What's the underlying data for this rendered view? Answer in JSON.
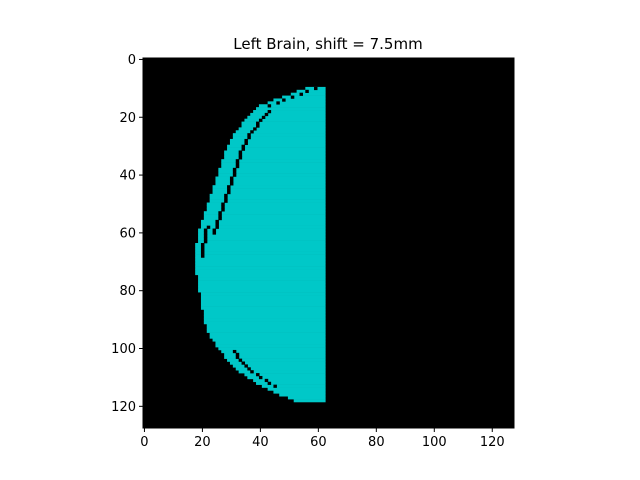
{
  "chart_data": {
    "type": "heatmap",
    "title": "Left Brain, shift = 7.5mm",
    "xlabel": "",
    "ylabel": "",
    "image_size": [
      128,
      128
    ],
    "xlim": [
      -0.5,
      127.5
    ],
    "ylim": [
      127.5,
      -0.5
    ],
    "xticks": [
      0,
      20,
      40,
      60,
      80,
      100,
      120
    ],
    "yticks": [
      0,
      20,
      40,
      60,
      80,
      100,
      120
    ],
    "background_color": "#000000",
    "mask_color": "#00c8c8",
    "mask": {
      "description_of_region": "left hemisphere brain mask",
      "right_edge_col": 62,
      "top_row": 10,
      "bottom_row": 118,
      "outline_left_col_by_row": [
        [
          10,
          56
        ],
        [
          13,
          48
        ],
        [
          16,
          40
        ],
        [
          20,
          36
        ],
        [
          25,
          32
        ],
        [
          30,
          29
        ],
        [
          36,
          27
        ],
        [
          42,
          25
        ],
        [
          48,
          23
        ],
        [
          54,
          21
        ],
        [
          60,
          19
        ],
        [
          66,
          18
        ],
        [
          72,
          18
        ],
        [
          78,
          19
        ],
        [
          84,
          20
        ],
        [
          90,
          21
        ],
        [
          96,
          23
        ],
        [
          100,
          26
        ],
        [
          104,
          29
        ],
        [
          108,
          33
        ],
        [
          112,
          39
        ],
        [
          115,
          45
        ],
        [
          118,
          52
        ]
      ],
      "inner_gaps": [
        {
          "rows": [
            10,
            16
          ],
          "col_from_outline": 3
        },
        {
          "rows": [
            18,
            60
          ],
          "col_from_outline": 5
        },
        {
          "rows": [
            58,
            68
          ],
          "col_from_outline": 2
        },
        {
          "rows": [
            101,
            113
          ],
          "col_from_outline": 4
        }
      ]
    }
  }
}
